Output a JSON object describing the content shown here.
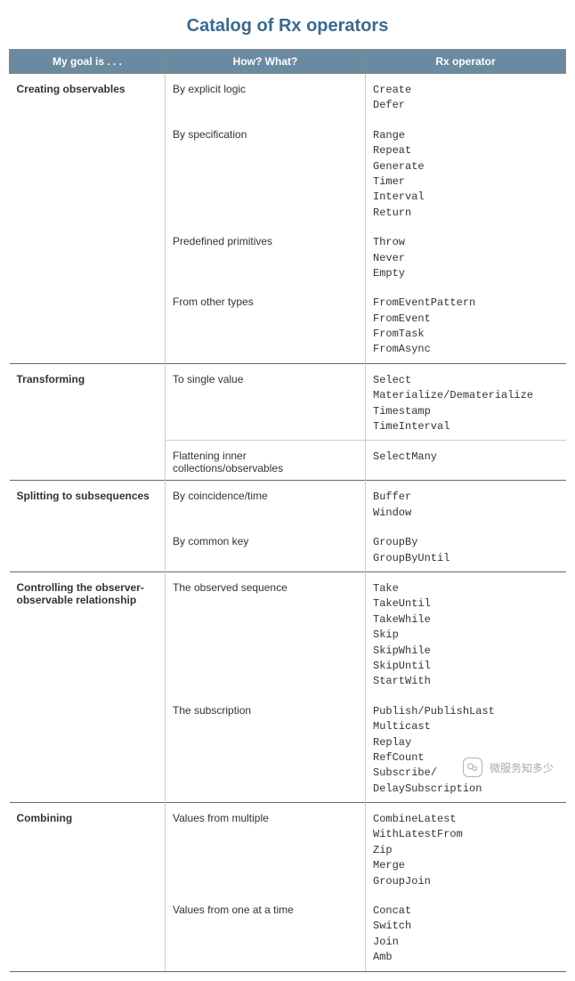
{
  "title": "Catalog of Rx operators",
  "columns": [
    "My goal is . . .",
    "How? What?",
    "Rx operator"
  ],
  "colors": {
    "header_bg": "#6a8aa2",
    "header_text": "#ffffff",
    "title_color": "#3a6a8f",
    "body_text": "#333333",
    "outer_border": "#666666",
    "inner_border": "#cccccc",
    "background": "#ffffff"
  },
  "sections": [
    {
      "goal": "Creating observables",
      "rows": [
        {
          "how": "By explicit logic",
          "ops": [
            "Create",
            "Defer"
          ]
        },
        {
          "how": "By specification",
          "ops": [
            "Range",
            "Repeat",
            "Generate",
            "Timer",
            "Interval",
            "Return"
          ]
        },
        {
          "how": "Predefined primitives",
          "ops": [
            "Throw",
            "Never",
            "Empty"
          ]
        },
        {
          "how": "From other types",
          "ops": [
            "FromEventPattern",
            "FromEvent",
            "FromTask",
            "FromAsync"
          ]
        }
      ]
    },
    {
      "goal": "Transforming",
      "rows": [
        {
          "how": "To single value",
          "ops": [
            "Select",
            "Materialize/Dematerialize",
            "Timestamp",
            "TimeInterval"
          ]
        },
        {
          "how": "Flattening inner collections/observables",
          "ops": [
            "SelectMany"
          ],
          "inner_border": true
        }
      ]
    },
    {
      "goal": "Splitting to subsequences",
      "rows": [
        {
          "how": "By coincidence/time",
          "ops": [
            "Buffer",
            "Window"
          ]
        },
        {
          "how": "By common key",
          "ops": [
            "GroupBy",
            "GroupByUntil"
          ]
        }
      ]
    },
    {
      "goal": "Controlling the observer-observable relationship",
      "rows": [
        {
          "how": "The observed sequence",
          "ops": [
            "Take",
            "TakeUntil",
            "TakeWhile",
            "Skip",
            "SkipWhile",
            "SkipUntil",
            "StartWith"
          ]
        },
        {
          "how": "The subscription",
          "ops": [
            "Publish/PublishLast",
            "Multicast",
            "Replay",
            "RefCount",
            "Subscribe/",
            "DelaySubscription"
          ]
        }
      ]
    },
    {
      "goal": "Combining",
      "rows": [
        {
          "how": "Values from multiple",
          "ops": [
            "CombineLatest",
            "WithLatestFrom",
            "Zip",
            "Merge",
            "GroupJoin"
          ]
        },
        {
          "how": "Values from one at a time",
          "ops": [
            "Concat",
            "Switch",
            "Join",
            "Amb"
          ]
        }
      ]
    }
  ],
  "watermark": {
    "text": "微服务知多少"
  }
}
